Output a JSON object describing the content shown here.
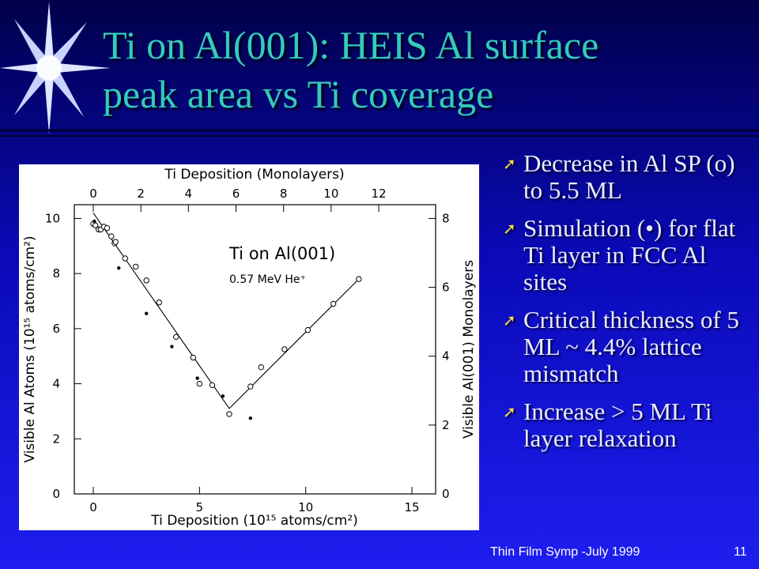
{
  "slide": {
    "title_line1": "Ti on Al(001): HEIS Al surface",
    "title_line2": "peak area vs Ti coverage",
    "bullets": [
      "Decrease in Al SP (o) to 5.5 ML",
      "Simulation (•) for flat Ti layer in FCC Al sites",
      "Critical thickness of 5 ML ~ 4.4% lattice mismatch",
      "Increase > 5 ML Ti layer relaxation"
    ],
    "footer": "Thin Film  Symp -July 1999",
    "page_number": "11",
    "accent": "#33ccbb",
    "icons": [
      "star-burst-icon",
      "bullet-arrow-icon"
    ]
  },
  "chart_data": {
    "type": "scatter",
    "top_axis_title": "Ti Deposition (Monolayers)",
    "bottom_axis_title": "Ti Deposition (10¹⁵ atoms/cm²)",
    "left_axis_title": "Visible Al Atoms (10¹⁵ atoms/cm²)",
    "right_axis_title": "Visible Al(001) Monolayers",
    "annotation": "Ti on Al(001)",
    "annotation2": "0.57 MeV He⁺",
    "xlim": [
      0,
      15
    ],
    "ylim": [
      0,
      10.5
    ],
    "top_xlim": [
      0,
      12
    ],
    "right_ylim": [
      0,
      8.4
    ],
    "x_ticks": [
      0,
      5,
      10,
      15
    ],
    "y_ticks": [
      0,
      2,
      4,
      6,
      8,
      10
    ],
    "top_ticks": [
      0,
      2,
      4,
      6,
      8,
      10,
      12
    ],
    "right_ticks": [
      0,
      2,
      4,
      6,
      8
    ],
    "series": [
      {
        "marker": "open-circle",
        "x": [
          0.0,
          0.1,
          0.25,
          0.35,
          0.5,
          0.65,
          0.85,
          1.0,
          1.05,
          1.5,
          2.0,
          2.5,
          3.1,
          3.9,
          4.7,
          5.0,
          5.6,
          6.4,
          7.4,
          7.9,
          9.0,
          10.1,
          11.3,
          12.5
        ],
        "y": [
          9.8,
          9.75,
          9.6,
          9.6,
          9.7,
          9.65,
          9.35,
          9.1,
          9.15,
          8.55,
          8.25,
          7.75,
          6.95,
          5.7,
          4.95,
          4.0,
          3.95,
          2.9,
          3.9,
          4.6,
          5.25,
          5.95,
          6.9,
          7.8
        ]
      },
      {
        "marker": "filled-dot",
        "x": [
          0.05,
          1.2,
          2.5,
          3.7,
          4.9,
          6.1,
          7.4
        ],
        "y": [
          9.9,
          8.2,
          6.55,
          5.35,
          4.2,
          3.55,
          2.75
        ]
      }
    ],
    "fit_line": {
      "x": [
        0.0,
        6.4,
        12.5
      ],
      "y": [
        10.2,
        3.1,
        7.8
      ]
    }
  }
}
